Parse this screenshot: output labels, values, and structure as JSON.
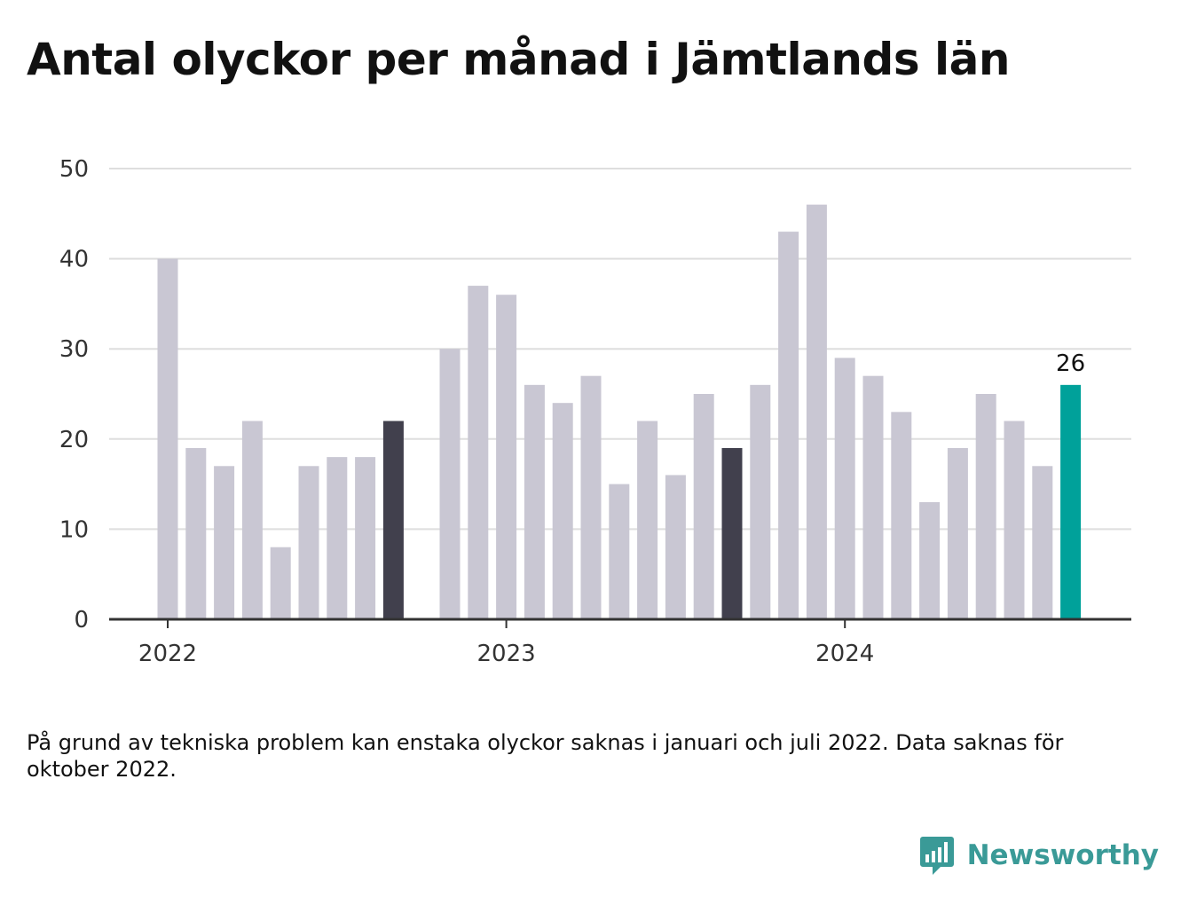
{
  "title": "Antal olyckor per månad i Jämtlands län",
  "note": "På grund av tekniska problem kan enstaka olyckor saknas i januari och juli 2022. Data saknas för oktober 2022.",
  "logo": {
    "text": "Newsworthy",
    "icon": "newsworthy-logo-icon"
  },
  "colors": {
    "bar": "#c9c7d3",
    "bar_highlight": "#41404d",
    "bar_latest": "#00a19a",
    "grid": "#dedede",
    "axis": "#333333",
    "logo": "#3a9a97"
  },
  "chart_data": {
    "type": "bar",
    "title": "Antal olyckor per månad i Jämtlands län",
    "xlabel": "",
    "ylabel": "",
    "ylim": [
      0,
      50
    ],
    "yticks": [
      "0",
      "10",
      "20",
      "30",
      "40",
      "50"
    ],
    "xticks": [
      "2022",
      "2023",
      "2024"
    ],
    "grid": true,
    "highlighted_months": [
      "2022-09",
      "2023-09"
    ],
    "latest_month": "2024-09",
    "latest_label": "26",
    "missing_months": [
      "2022-10"
    ],
    "categories": [
      "2022-01",
      "2022-02",
      "2022-03",
      "2022-04",
      "2022-05",
      "2022-06",
      "2022-07",
      "2022-08",
      "2022-09",
      "2022-10",
      "2022-11",
      "2022-12",
      "2023-01",
      "2023-02",
      "2023-03",
      "2023-04",
      "2023-05",
      "2023-06",
      "2023-07",
      "2023-08",
      "2023-09",
      "2023-10",
      "2023-11",
      "2023-12",
      "2024-01",
      "2024-02",
      "2024-03",
      "2024-04",
      "2024-05",
      "2024-06",
      "2024-07",
      "2024-08",
      "2024-09"
    ],
    "values": [
      40,
      19,
      17,
      22,
      8,
      17,
      18,
      18,
      22,
      null,
      30,
      37,
      36,
      26,
      24,
      27,
      15,
      22,
      16,
      25,
      19,
      26,
      43,
      46,
      29,
      27,
      23,
      13,
      19,
      25,
      22,
      17,
      26
    ]
  }
}
